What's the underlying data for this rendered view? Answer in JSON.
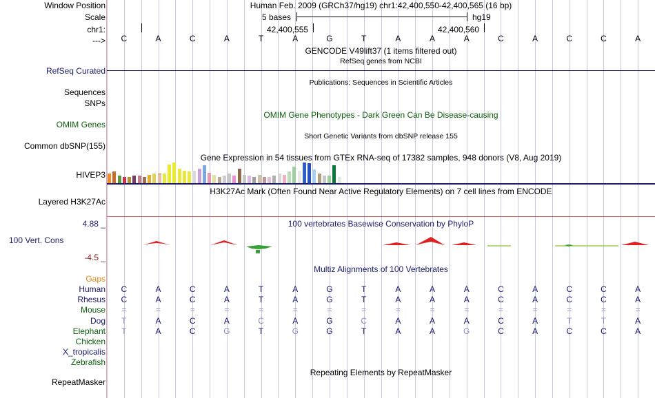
{
  "header": {
    "window_position_label": "Window Position",
    "window_position_value": "Human Feb. 2009 (GRCh37/hg19)   chr1:42,400,550-42,400,565 (16 bp)",
    "scale_label": "Scale",
    "scale_bases": "5 bases",
    "scale_assembly": "hg19",
    "chrom_label": "chr1:",
    "coord_left": "42,400,555",
    "coord_right": "42,400,560",
    "arrow_label": "--->"
  },
  "reference_bases": [
    "C",
    "A",
    "C",
    "A",
    "T",
    "A",
    "G",
    "T",
    "A",
    "A",
    "A",
    "C",
    "A",
    "C",
    "C",
    "A"
  ],
  "tracks": {
    "gencode_title": "GENCODE V49lift37 (1 items filtered out)",
    "refseq_title": "RefSeq genes from NCBI",
    "refseq_label": "RefSeq Curated",
    "publications_title": "Publications: Sequences in Scientific Articles",
    "sequences_label": "Sequences",
    "snps_label": "SNPs",
    "omim_title": "OMIM Gene Phenotypes - Dark Green Can Be Disease-causing",
    "omim_label": "OMIM Genes",
    "dbsnp_title": "Short Genetic Variants from dbSNP release 155",
    "dbsnp_label": "Common dbSNP(155)",
    "gtex_title": "Gene Expression in 54 tissues from GTEx RNA-seq of 17382 samples, 948 donors (V8, Aug 2019)",
    "gtex_label": "HIVEP3",
    "h3k27ac_title": "H3K27Ac Mark (Often Found Near Active Regulatory Elements) on 7 cell lines from ENCODE",
    "h3k27ac_label": "Layered H3K27Ac",
    "cons_max": "4.88 _",
    "cons_title": "100 vertebrates Basewise Conservation by PhyloP",
    "cons_label": "100 Vert. Cons",
    "cons_min": "-4.5 _",
    "multiz_title": "Multiz Alignments of 100 Vertebrates",
    "gaps_label": "Gaps",
    "repeat_title": "Repeating Elements by RepeatMasker",
    "repeat_label": "RepeatMasker"
  },
  "gtex_bars": [
    {
      "color": "#f08a2a",
      "value": 0.45
    },
    {
      "color": "#c86e2a",
      "value": 0.55
    },
    {
      "color": "#5a9a3a",
      "value": 0.35
    },
    {
      "color": "#c9324a",
      "value": 0.3
    },
    {
      "color": "#b09030",
      "value": 0.3
    },
    {
      "color": "#7a3a6a",
      "value": 0.35
    },
    {
      "color": "#c27a8a",
      "value": 0.35
    },
    {
      "color": "#a07050",
      "value": 0.3
    },
    {
      "color": "#e0b030",
      "value": 0.4
    },
    {
      "color": "#e0d060",
      "value": 0.45
    },
    {
      "color": "#e8c0a0",
      "value": 0.5
    },
    {
      "color": "#e8e840",
      "value": 0.45
    },
    {
      "color": "#eaea30",
      "value": 0.9
    },
    {
      "color": "#eaea30",
      "value": 1.0
    },
    {
      "color": "#e8e840",
      "value": 0.7
    },
    {
      "color": "#e8e840",
      "value": 0.6
    },
    {
      "color": "#e8e840",
      "value": 0.55
    },
    {
      "color": "#d8d8d8",
      "value": 0.6
    },
    {
      "color": "#c8a0d8",
      "value": 0.7
    },
    {
      "color": "#80a8e0",
      "value": 0.85
    },
    {
      "color": "#e89ab0",
      "value": 0.5
    },
    {
      "color": "#e0e0a0",
      "value": 0.4
    },
    {
      "color": "#b8a890",
      "value": 0.3
    },
    {
      "color": "#cfcfcf",
      "value": 0.35
    },
    {
      "color": "#c8c8c8",
      "value": 0.45
    },
    {
      "color": "#f090d0",
      "value": 0.35
    },
    {
      "color": "#8a6a48",
      "value": 0.7
    },
    {
      "color": "#c8c8c8",
      "value": 0.4
    },
    {
      "color": "#e0b8e8",
      "value": 0.35
    },
    {
      "color": "#a0a0a0",
      "value": 0.3
    },
    {
      "color": "#d0c0a8",
      "value": 0.4
    },
    {
      "color": "#c09898",
      "value": 0.3
    },
    {
      "color": "#e0c0d0",
      "value": 0.3
    },
    {
      "color": "#b0b0b0",
      "value": 0.35
    },
    {
      "color": "#d8d8d8",
      "value": 0.45
    },
    {
      "color": "#f0b0c0",
      "value": 0.4
    },
    {
      "color": "#b8e0b8",
      "value": 0.55
    },
    {
      "color": "#9ed0a0",
      "value": 0.8
    },
    {
      "color": "#e8e8e8",
      "value": 0.6
    },
    {
      "color": "#3060d0",
      "value": 1.0
    },
    {
      "color": "#2850c0",
      "value": 0.95
    },
    {
      "color": "#a8d0f0",
      "value": 0.65
    },
    {
      "color": "#b0a080",
      "value": 0.45
    },
    {
      "color": "#c8c8c8",
      "value": 0.35
    },
    {
      "color": "#9ad09a",
      "value": 0.35
    },
    {
      "color": "#0a7a3a",
      "value": 0.85
    },
    {
      "color": "#e8e8e8",
      "value": 0.3
    }
  ],
  "alignment": [
    {
      "species": "Human",
      "color": "#16166e",
      "bases": [
        "C",
        "A",
        "C",
        "A",
        "T",
        "A",
        "G",
        "T",
        "A",
        "A",
        "A",
        "C",
        "A",
        "C",
        "C",
        "A"
      ],
      "dim": []
    },
    {
      "species": "Rhesus",
      "color": "#16166e",
      "bases": [
        "C",
        "A",
        "C",
        "A",
        "T",
        "A",
        "G",
        "T",
        "A",
        "A",
        "A",
        "C",
        "A",
        "C",
        "C",
        "A"
      ],
      "dim": []
    },
    {
      "species": "Mouse",
      "color": "#0b5e0b",
      "bases": [
        "=",
        "=",
        "=",
        "=",
        "=",
        "=",
        "=",
        "=",
        "=",
        "=",
        "=",
        "=",
        "=",
        "=",
        "=",
        "="
      ],
      "dim": [
        0,
        1,
        2,
        3,
        4,
        5,
        6,
        7,
        8,
        9,
        10,
        11,
        12,
        13,
        14,
        15
      ]
    },
    {
      "species": "Dog",
      "color": "#16166e",
      "bases": [
        "T",
        "A",
        "C",
        "A",
        "C",
        "A",
        "G",
        "C",
        "A",
        "A",
        "A",
        "C",
        "A",
        "T",
        "T",
        "A"
      ],
      "dim": [
        0,
        4,
        7,
        13,
        14
      ]
    },
    {
      "species": "Elephant",
      "color": "#0b5e0b",
      "bases": [
        "T",
        "A",
        "C",
        "G",
        "T",
        "G",
        "G",
        "T",
        "A",
        "A",
        "G",
        "C",
        "A",
        "C",
        "C",
        "A"
      ],
      "dim": [
        0,
        3,
        5,
        10
      ]
    },
    {
      "species": "Chicken",
      "color": "#0b5e0b",
      "bases": [],
      "dim": []
    },
    {
      "species": "X_tropicalis",
      "color": "#16166e",
      "bases": [],
      "dim": []
    },
    {
      "species": "Zebrafish",
      "color": "#0b5e0b",
      "bases": [],
      "dim": []
    }
  ],
  "colors": {
    "grid": "#c8c8e0",
    "border": "#e8a8a8",
    "navy": "#1c1c6b",
    "cons_pos": "#e02020",
    "cons_neg": "#3aa03a"
  }
}
